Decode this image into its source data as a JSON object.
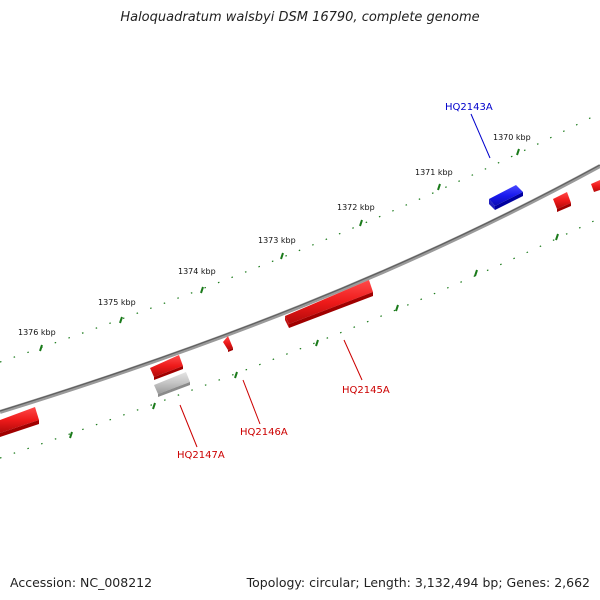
{
  "title": "Haloquadratum walsbyi DSM 16790, complete genome",
  "footer": {
    "accession": "Accession: NC_008212",
    "summary": "Topology: circular; Length: 3,132,494 bp; Genes: 2,662"
  },
  "colors": {
    "reverse_gene": "#e8141b",
    "forward_gene": "#1616e8",
    "other_feature": "#c8c8c8",
    "tick": "#1a7a1a",
    "backbone": "#808080"
  },
  "kbp_labels": [
    "1370 kbp",
    "1371 kbp",
    "1372 kbp",
    "1373 kbp",
    "1374 kbp",
    "1375 kbp",
    "1376 kbp"
  ],
  "genes": [
    {
      "name": "HQ2143A",
      "strand": "forward",
      "color": "#0000cc"
    },
    {
      "name": "HQ2145A",
      "strand": "reverse",
      "color": "#cc0000"
    },
    {
      "name": "HQ2146A",
      "strand": "reverse",
      "color": "#cc0000"
    },
    {
      "name": "HQ2147A",
      "strand": "reverse",
      "color": "#cc0000"
    }
  ]
}
